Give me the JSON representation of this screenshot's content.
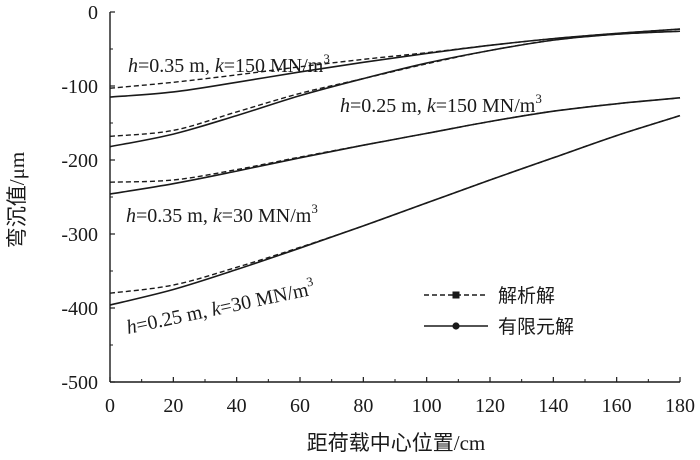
{
  "chart_data": {
    "type": "line",
    "xlabel": "距荷载中心位置/cm",
    "ylabel": "弯沉值/μm",
    "xlim": [
      0,
      180
    ],
    "ylim": [
      -500,
      0
    ],
    "xticks": [
      0,
      20,
      40,
      60,
      80,
      100,
      120,
      140,
      160,
      180
    ],
    "yticks": [
      0,
      -100,
      -200,
      -300,
      -400,
      -500
    ],
    "grid": false,
    "legend_position": "bottom-right",
    "legend": [
      {
        "label": "解析解",
        "style": "dashed",
        "marker": "square"
      },
      {
        "label": "有限元解",
        "style": "solid",
        "marker": "circle"
      }
    ],
    "x": [
      0,
      20,
      40,
      60,
      80,
      100,
      120,
      140,
      160,
      180
    ],
    "groups": [
      {
        "annotation": {
          "h": "h",
          "k": "k",
          "text_mid": "=0.35 m, ",
          "text_end": "=150 MN/m",
          "sup": "3"
        },
        "analytical": [
          -103,
          -95,
          -85,
          -74,
          -64,
          -55,
          -45,
          -36,
          -29,
          -23
        ],
        "fem": [
          -115,
          -108,
          -95,
          -81,
          -68,
          -56,
          -45,
          -36,
          -29,
          -23
        ]
      },
      {
        "annotation": {
          "h": "h",
          "k": "k",
          "text_mid": "=0.25 m, ",
          "text_end": "=150 MN/m",
          "sup": "3"
        },
        "analytical": [
          -168,
          -160,
          -135,
          -110,
          -90,
          -70,
          -52,
          -38,
          -30,
          -26
        ],
        "fem": [
          -182,
          -165,
          -140,
          -113,
          -90,
          -69,
          -52,
          -38,
          -30,
          -26
        ]
      },
      {
        "annotation": {
          "h": "h",
          "k": "k",
          "text_mid": "=0.35 m, ",
          "text_end": "=30 MN/m",
          "sup": "3"
        },
        "analytical": [
          -230,
          -227,
          -213,
          -196,
          -180,
          -164,
          -148,
          -134,
          -124,
          -116
        ],
        "fem": [
          -246,
          -232,
          -215,
          -197,
          -180,
          -164,
          -148,
          -134,
          -124,
          -116
        ]
      },
      {
        "annotation": {
          "h": "h",
          "k": "k",
          "text_mid": "=0.25 m, ",
          "text_end": "=30 MN/m",
          "sup": "3"
        },
        "analytical": [
          -380,
          -369,
          -345,
          -318,
          -289,
          -258,
          -227,
          -197,
          -167,
          -140
        ],
        "fem": [
          -396,
          -375,
          -348,
          -319,
          -289,
          -258,
          -227,
          -197,
          -167,
          -140
        ]
      }
    ]
  }
}
